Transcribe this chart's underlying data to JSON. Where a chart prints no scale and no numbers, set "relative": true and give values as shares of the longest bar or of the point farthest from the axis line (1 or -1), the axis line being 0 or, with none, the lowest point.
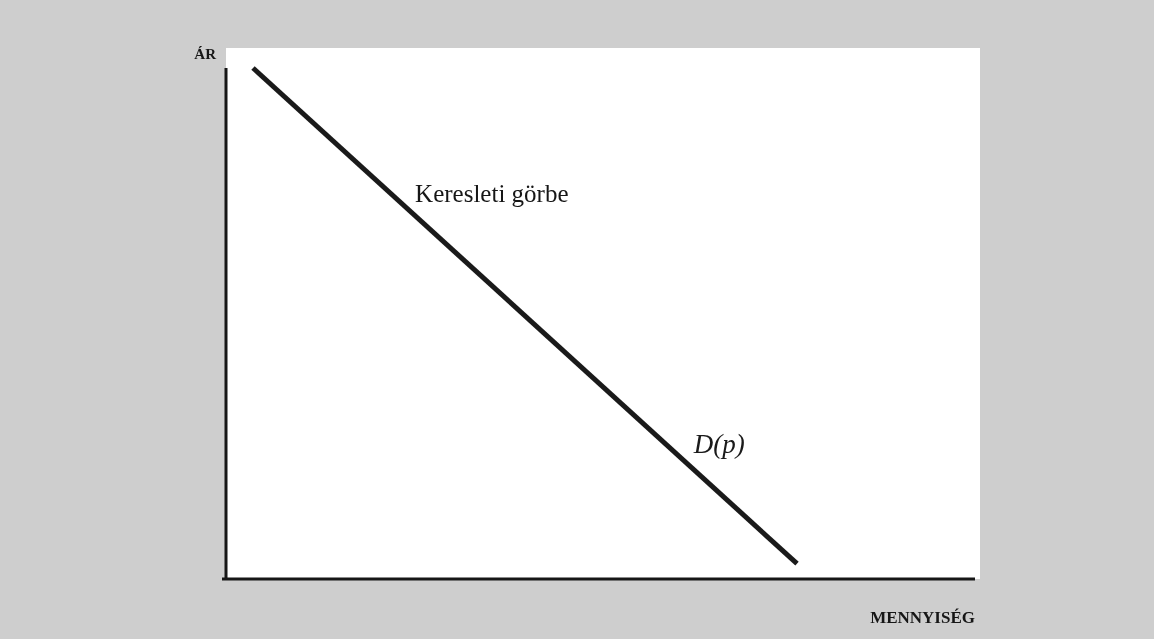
{
  "chart_data": {
    "type": "line",
    "xlabel": "MENNYISÉG",
    "ylabel": "ÁR",
    "annotations": [
      "Keresleti görbe"
    ],
    "categories": [
      null,
      null
    ],
    "series": [
      {
        "name": "D(p)",
        "color": "#1a1a1a",
        "values": [
          1,
          0.03
        ]
      }
    ],
    "relative": true,
    "marker": "none",
    "line_style": "solid",
    "tick_labels": false
  }
}
